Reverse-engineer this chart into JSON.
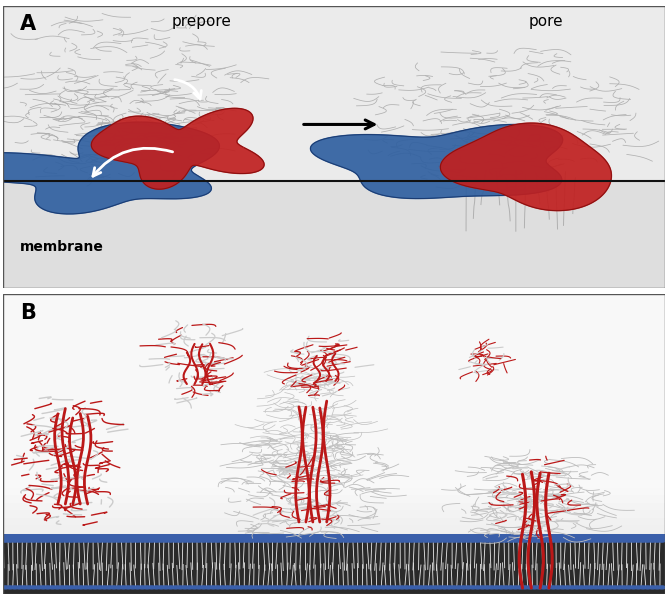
{
  "figure_width": 6.68,
  "figure_height": 6.0,
  "dpi": 100,
  "panel_A_bg_top": "#f0f0f0",
  "panel_A_bg_bot": "#e0e0e0",
  "panel_B_bg": "#f5f5f5",
  "border_color": "#555555",
  "membrane_color_A": "#111111",
  "membrane_label": "membrane",
  "label_A": "A",
  "label_B": "B",
  "label_prepore": "prepore",
  "label_pore": "pore",
  "blue_color": "#3060a0",
  "red_color": "#c02020",
  "protein_gray": "#aaaaaa",
  "protein_light": "#cccccc",
  "red_helix": "#bb1818",
  "lipid_head": "#3060b0",
  "lipid_tail": "#d8d8d8",
  "white": "#ffffff"
}
